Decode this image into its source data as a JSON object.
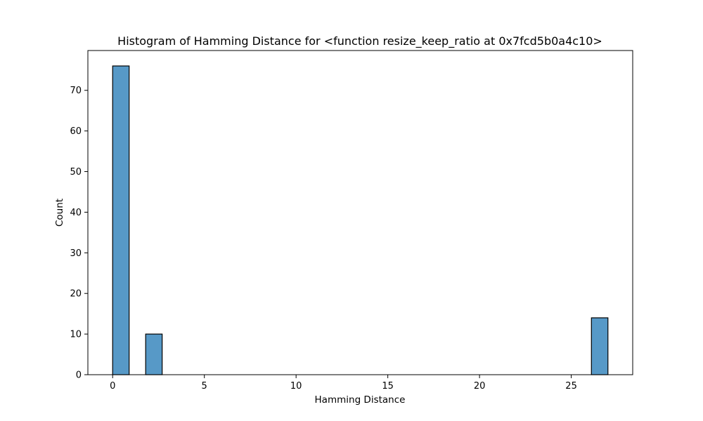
{
  "chart_data": {
    "type": "bar",
    "title": "Histogram of Hamming Distance for <function resize_keep_ratio at 0x7fcd5b0a4c10>",
    "xlabel": "Hamming Distance",
    "ylabel": "Count",
    "xlim": [
      -1.35,
      28.35
    ],
    "ylim": [
      0,
      79.8
    ],
    "x_ticks": [
      0,
      5,
      10,
      15,
      20,
      25
    ],
    "y_ticks": [
      0,
      10,
      20,
      30,
      40,
      50,
      60,
      70
    ],
    "grid": false,
    "legend": "none",
    "bin_width": 0.9,
    "bins": [
      {
        "x0": 0.0,
        "count": 76
      },
      {
        "x0": 1.8,
        "count": 10
      },
      {
        "x0": 26.1,
        "count": 14
      }
    ],
    "colors": {
      "bar_fill": "#5799c7",
      "bar_edge": "#000000"
    }
  }
}
